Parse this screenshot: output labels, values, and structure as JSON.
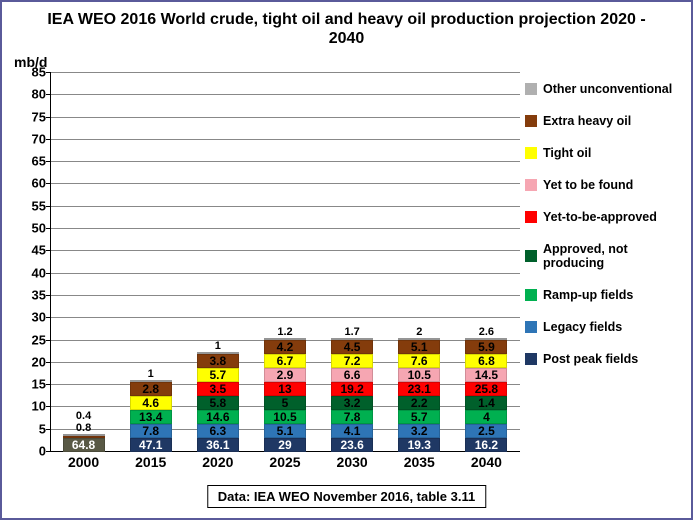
{
  "chart": {
    "type": "stacked-bar",
    "title": "IEA WEO 2016 World crude, tight oil and heavy oil production projection 2020 - 2040",
    "ylabel": "mb/d",
    "ylim": [
      0,
      85
    ],
    "ytick_step": 5,
    "background_color": "#ffffff",
    "grid_color": "#888888",
    "border_color": "#5a5a9a",
    "categories": [
      "2000",
      "2015",
      "2020",
      "2025",
      "2030",
      "2035",
      "2040"
    ],
    "series": [
      {
        "key": "post_peak",
        "label": "Post peak fields",
        "color": "#1f3864",
        "text_color": "#ffffff"
      },
      {
        "key": "legacy",
        "label": "Legacy fields",
        "color": "#2e75b6",
        "text_color": "#000000"
      },
      {
        "key": "ramp_up",
        "label": "Ramp-up fields",
        "color": "#00b050",
        "text_color": "#000000"
      },
      {
        "key": "approved",
        "label": "Approved, not producing",
        "color": "#00602b",
        "text_color": "#000000"
      },
      {
        "key": "yet_approved",
        "label": "Yet-to-be-approved",
        "color": "#ff0000",
        "text_color": "#000000"
      },
      {
        "key": "yet_found",
        "label": "Yet to be found",
        "color": "#f6a6b2",
        "text_color": "#000000"
      },
      {
        "key": "tight",
        "label": "Tight oil",
        "color": "#ffff00",
        "text_color": "#000000"
      },
      {
        "key": "heavy",
        "label": "Extra heavy oil",
        "color": "#843c0c",
        "text_color": "#000000"
      },
      {
        "key": "other",
        "label": "Other unconventional",
        "color": "#b0b0b0",
        "text_color": "#000000"
      }
    ],
    "year2000_color": "#595945",
    "stacks": {
      "2000": [
        {
          "k": "base2000",
          "v": 64.8,
          "label": "64.8",
          "labelpos": "inside",
          "color": "#595945",
          "tc": "#ffffff"
        },
        {
          "k": "heavy",
          "v": 0.8,
          "label": "0.8",
          "labelpos": "above"
        },
        {
          "k": "other",
          "v": 0.4,
          "label": "0.4",
          "labelpos": "above"
        }
      ],
      "2015": [
        {
          "k": "post_peak",
          "v": 47.1,
          "label": "47.1",
          "labelpos": "inside"
        },
        {
          "k": "legacy",
          "v": 7.8,
          "label": "7.8",
          "labelpos": "inside"
        },
        {
          "k": "ramp_up",
          "v": 13.4,
          "label": "13.4",
          "labelpos": "inside"
        },
        {
          "k": "tight",
          "v": 4.6,
          "label": "4.6",
          "labelpos": "inside"
        },
        {
          "k": "heavy",
          "v": 2.8,
          "label": "2.8",
          "labelpos": "inside"
        },
        {
          "k": "other",
          "v": 1.0,
          "label": "1",
          "labelpos": "above"
        }
      ],
      "2020": [
        {
          "k": "post_peak",
          "v": 36.1,
          "label": "36.1",
          "labelpos": "inside"
        },
        {
          "k": "legacy",
          "v": 6.3,
          "label": "6.3",
          "labelpos": "inside"
        },
        {
          "k": "ramp_up",
          "v": 14.6,
          "label": "14.6",
          "labelpos": "inside"
        },
        {
          "k": "approved",
          "v": 5.8,
          "label": "5.8",
          "labelpos": "inside"
        },
        {
          "k": "yet_approved",
          "v": 3.5,
          "label": "3.5",
          "labelpos": "inside"
        },
        {
          "k": "tight",
          "v": 5.7,
          "label": "5.7",
          "labelpos": "inside"
        },
        {
          "k": "heavy",
          "v": 3.8,
          "label": "3.8",
          "labelpos": "inside"
        },
        {
          "k": "other",
          "v": 1.0,
          "label": "1",
          "labelpos": "above"
        }
      ],
      "2025": [
        {
          "k": "post_peak",
          "v": 29,
          "label": "29",
          "labelpos": "inside"
        },
        {
          "k": "legacy",
          "v": 5.1,
          "label": "5.1",
          "labelpos": "inside"
        },
        {
          "k": "ramp_up",
          "v": 10.5,
          "label": "10.5",
          "labelpos": "inside"
        },
        {
          "k": "approved",
          "v": 5.0,
          "label": "5",
          "labelpos": "inside"
        },
        {
          "k": "yet_approved",
          "v": 13,
          "label": "13",
          "labelpos": "inside"
        },
        {
          "k": "yet_found",
          "v": 2.9,
          "label": "2.9",
          "labelpos": "inside"
        },
        {
          "k": "tight",
          "v": 6.7,
          "label": "6.7",
          "labelpos": "inside"
        },
        {
          "k": "heavy",
          "v": 4.2,
          "label": "4.2",
          "labelpos": "inside"
        },
        {
          "k": "other",
          "v": 1.2,
          "label": "1.2",
          "labelpos": "above"
        }
      ],
      "2030": [
        {
          "k": "post_peak",
          "v": 23.6,
          "label": "23.6",
          "labelpos": "inside"
        },
        {
          "k": "legacy",
          "v": 4.1,
          "label": "4.1",
          "labelpos": "inside"
        },
        {
          "k": "ramp_up",
          "v": 7.8,
          "label": "7.8",
          "labelpos": "inside"
        },
        {
          "k": "approved",
          "v": 3.2,
          "label": "3.2",
          "labelpos": "inside"
        },
        {
          "k": "yet_approved",
          "v": 19.2,
          "label": "19.2",
          "labelpos": "inside"
        },
        {
          "k": "yet_found",
          "v": 6.6,
          "label": "6.6",
          "labelpos": "inside"
        },
        {
          "k": "tight",
          "v": 7.2,
          "label": "7.2",
          "labelpos": "inside"
        },
        {
          "k": "heavy",
          "v": 4.5,
          "label": "4.5",
          "labelpos": "inside"
        },
        {
          "k": "other",
          "v": 1.7,
          "label": "1.7",
          "labelpos": "above"
        }
      ],
      "2035": [
        {
          "k": "post_peak",
          "v": 19.3,
          "label": "19.3",
          "labelpos": "inside"
        },
        {
          "k": "legacy",
          "v": 3.2,
          "label": "3.2",
          "labelpos": "inside"
        },
        {
          "k": "ramp_up",
          "v": 5.7,
          "label": "5.7",
          "labelpos": "inside"
        },
        {
          "k": "approved",
          "v": 2.2,
          "label": "2.2",
          "labelpos": "inside"
        },
        {
          "k": "yet_approved",
          "v": 23.1,
          "label": "23.1",
          "labelpos": "inside"
        },
        {
          "k": "yet_found",
          "v": 10.5,
          "label": "10.5",
          "labelpos": "inside"
        },
        {
          "k": "tight",
          "v": 7.6,
          "label": "7.6",
          "labelpos": "inside"
        },
        {
          "k": "heavy",
          "v": 5.1,
          "label": "5.1",
          "labelpos": "inside"
        },
        {
          "k": "other",
          "v": 2.0,
          "label": "2",
          "labelpos": "above"
        }
      ],
      "2040": [
        {
          "k": "post_peak",
          "v": 16.2,
          "label": "16.2",
          "labelpos": "inside"
        },
        {
          "k": "legacy",
          "v": 2.5,
          "label": "2.5",
          "labelpos": "inside"
        },
        {
          "k": "ramp_up",
          "v": 4.0,
          "label": "4",
          "labelpos": "inside"
        },
        {
          "k": "approved",
          "v": 1.4,
          "label": "1.4",
          "labelpos": "inside"
        },
        {
          "k": "yet_approved",
          "v": 25.8,
          "label": "25.8",
          "labelpos": "inside"
        },
        {
          "k": "yet_found",
          "v": 14.5,
          "label": "14.5",
          "labelpos": "inside"
        },
        {
          "k": "tight",
          "v": 6.8,
          "label": "6.8",
          "labelpos": "inside"
        },
        {
          "k": "heavy",
          "v": 5.9,
          "label": "5.9",
          "labelpos": "inside"
        },
        {
          "k": "other",
          "v": 2.6,
          "label": "2.6",
          "labelpos": "above"
        }
      ]
    },
    "caption": "Data: IEA WEO November 2016, table 3.11"
  }
}
